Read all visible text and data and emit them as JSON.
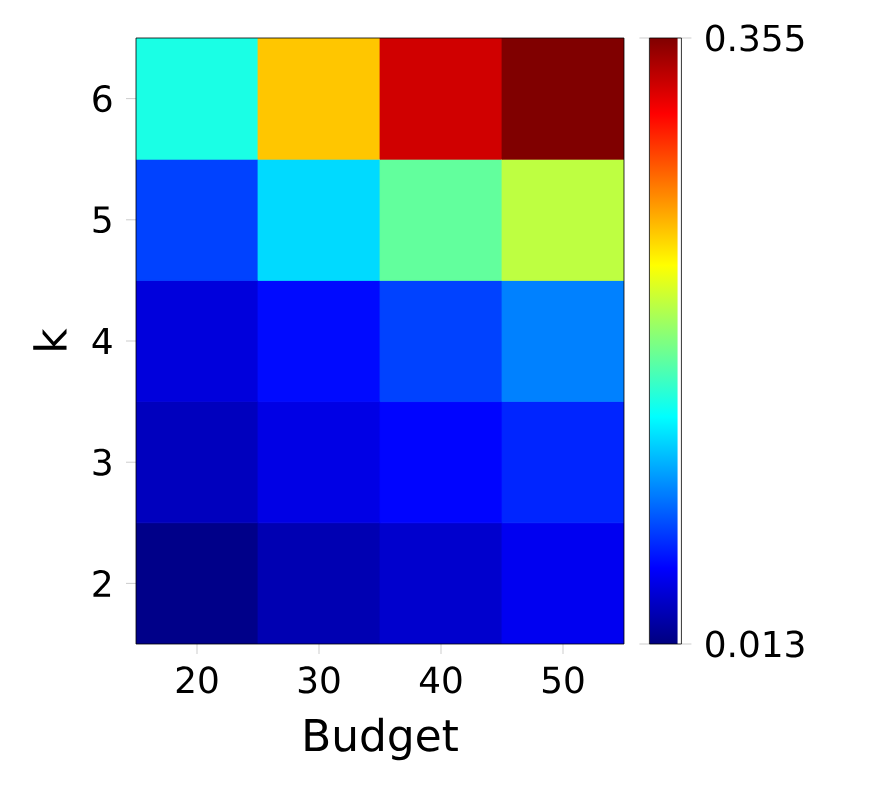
{
  "chart_data": {
    "type": "heatmap",
    "xlabel": "Budget",
    "ylabel": "k",
    "categories": [
      "20",
      "30",
      "40",
      "50"
    ],
    "y_categories": [
      "6",
      "5",
      "4",
      "3",
      "2"
    ],
    "cells": [
      [
        0.15,
        0.246,
        0.328,
        0.355
      ],
      [
        0.078,
        0.129,
        0.174,
        0.205
      ],
      [
        0.044,
        0.059,
        0.078,
        0.099
      ],
      [
        0.034,
        0.047,
        0.057,
        0.068
      ],
      [
        0.016,
        0.03,
        0.039,
        0.051
      ]
    ],
    "clim": [
      0.013,
      0.355
    ],
    "cticks": [
      0.013,
      0.355
    ]
  }
}
